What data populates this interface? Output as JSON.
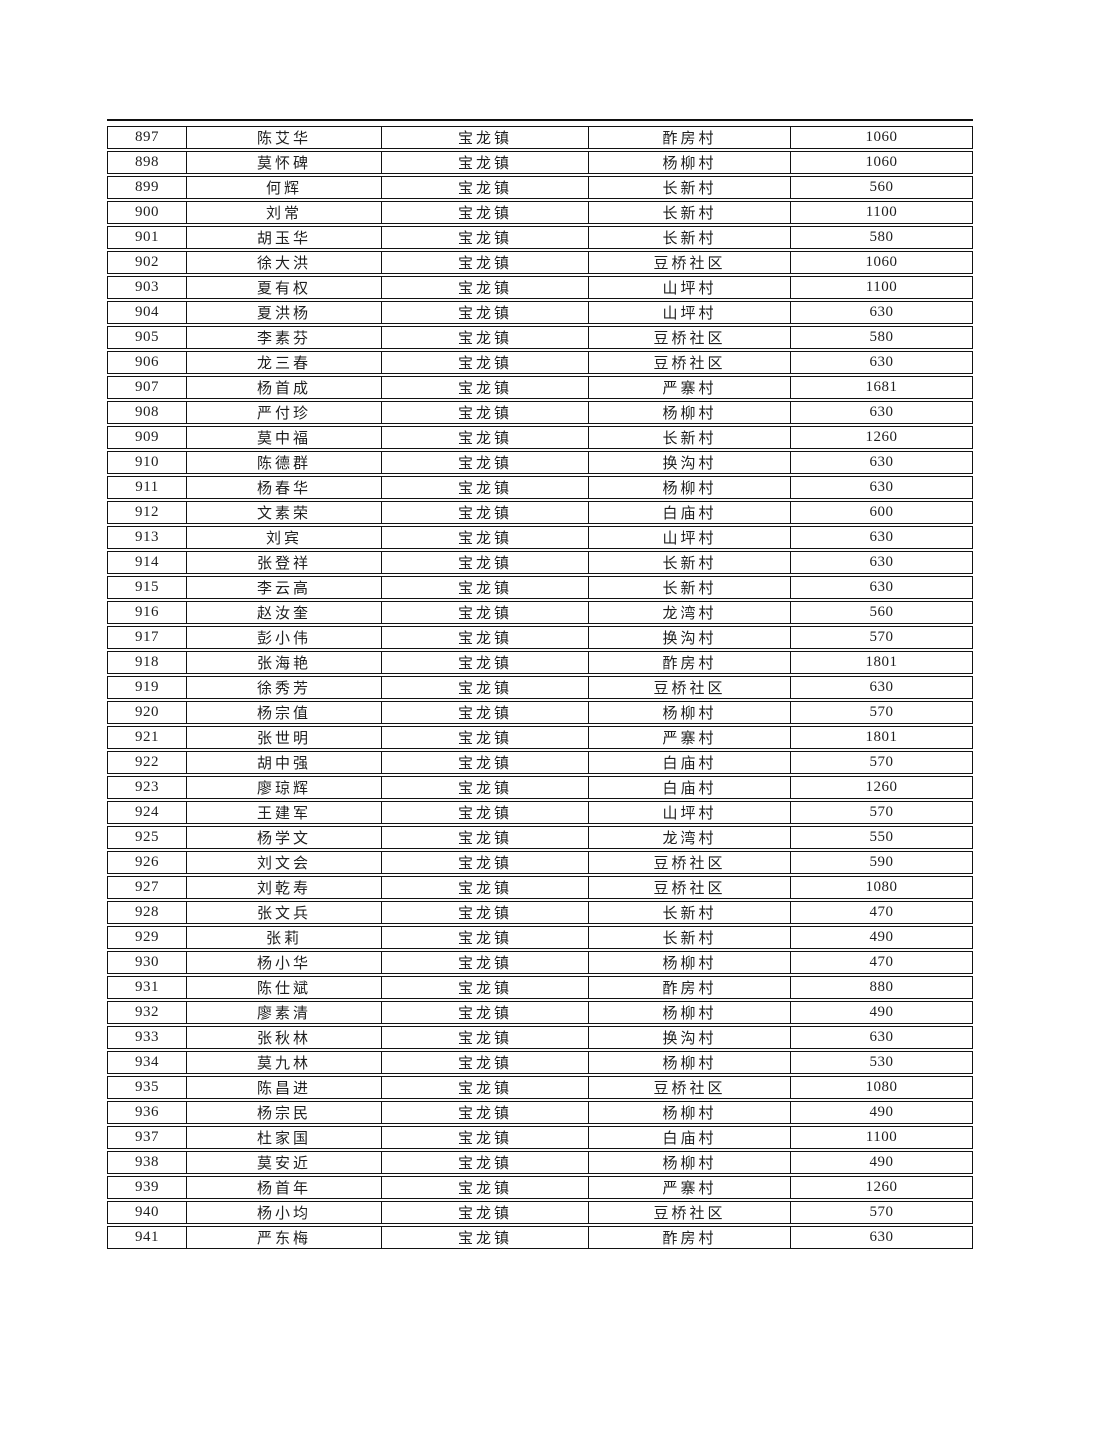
{
  "table": {
    "column_keys": [
      "no",
      "name",
      "town",
      "village",
      "amount"
    ],
    "town_value_common": "宝龙镇",
    "rows": [
      {
        "no": "897",
        "name": "陈艾华",
        "town": "宝龙镇",
        "village": "酢房村",
        "amount": "1060"
      },
      {
        "no": "898",
        "name": "莫怀碑",
        "town": "宝龙镇",
        "village": "杨柳村",
        "amount": "1060"
      },
      {
        "no": "899",
        "name": "何辉",
        "town": "宝龙镇",
        "village": "长新村",
        "amount": "560"
      },
      {
        "no": "900",
        "name": "刘常",
        "town": "宝龙镇",
        "village": "长新村",
        "amount": "1100"
      },
      {
        "no": "901",
        "name": "胡玉华",
        "town": "宝龙镇",
        "village": "长新村",
        "amount": "580"
      },
      {
        "no": "902",
        "name": "徐大洪",
        "town": "宝龙镇",
        "village": "豆桥社区",
        "amount": "1060"
      },
      {
        "no": "903",
        "name": "夏有权",
        "town": "宝龙镇",
        "village": "山坪村",
        "amount": "1100"
      },
      {
        "no": "904",
        "name": "夏洪杨",
        "town": "宝龙镇",
        "village": "山坪村",
        "amount": "630"
      },
      {
        "no": "905",
        "name": "李素芬",
        "town": "宝龙镇",
        "village": "豆桥社区",
        "amount": "580"
      },
      {
        "no": "906",
        "name": "龙三春",
        "town": "宝龙镇",
        "village": "豆桥社区",
        "amount": "630"
      },
      {
        "no": "907",
        "name": "杨首成",
        "town": "宝龙镇",
        "village": "严寨村",
        "amount": "1681"
      },
      {
        "no": "908",
        "name": "严付珍",
        "town": "宝龙镇",
        "village": "杨柳村",
        "amount": "630"
      },
      {
        "no": "909",
        "name": "莫中福",
        "town": "宝龙镇",
        "village": "长新村",
        "amount": "1260"
      },
      {
        "no": "910",
        "name": "陈德群",
        "town": "宝龙镇",
        "village": "换沟村",
        "amount": "630"
      },
      {
        "no": "911",
        "name": "杨春华",
        "town": "宝龙镇",
        "village": "杨柳村",
        "amount": "630"
      },
      {
        "no": "912",
        "name": "文素荣",
        "town": "宝龙镇",
        "village": "白庙村",
        "amount": "600"
      },
      {
        "no": "913",
        "name": "刘宾",
        "town": "宝龙镇",
        "village": "山坪村",
        "amount": "630"
      },
      {
        "no": "914",
        "name": "张登祥",
        "town": "宝龙镇",
        "village": "长新村",
        "amount": "630"
      },
      {
        "no": "915",
        "name": "李云高",
        "town": "宝龙镇",
        "village": "长新村",
        "amount": "630"
      },
      {
        "no": "916",
        "name": "赵汝奎",
        "town": "宝龙镇",
        "village": "龙湾村",
        "amount": "560"
      },
      {
        "no": "917",
        "name": "彭小伟",
        "town": "宝龙镇",
        "village": "换沟村",
        "amount": "570"
      },
      {
        "no": "918",
        "name": "张海艳",
        "town": "宝龙镇",
        "village": "酢房村",
        "amount": "1801"
      },
      {
        "no": "919",
        "name": "徐秀芳",
        "town": "宝龙镇",
        "village": "豆桥社区",
        "amount": "630"
      },
      {
        "no": "920",
        "name": "杨宗值",
        "town": "宝龙镇",
        "village": "杨柳村",
        "amount": "570"
      },
      {
        "no": "921",
        "name": "张世明",
        "town": "宝龙镇",
        "village": "严寨村",
        "amount": "1801"
      },
      {
        "no": "922",
        "name": "胡中强",
        "town": "宝龙镇",
        "village": "白庙村",
        "amount": "570"
      },
      {
        "no": "923",
        "name": "廖琼辉",
        "town": "宝龙镇",
        "village": "白庙村",
        "amount": "1260"
      },
      {
        "no": "924",
        "name": "王建军",
        "town": "宝龙镇",
        "village": "山坪村",
        "amount": "570"
      },
      {
        "no": "925",
        "name": "杨学文",
        "town": "宝龙镇",
        "village": "龙湾村",
        "amount": "550"
      },
      {
        "no": "926",
        "name": "刘文会",
        "town": "宝龙镇",
        "village": "豆桥社区",
        "amount": "590"
      },
      {
        "no": "927",
        "name": "刘乾寿",
        "town": "宝龙镇",
        "village": "豆桥社区",
        "amount": "1080"
      },
      {
        "no": "928",
        "name": "张文兵",
        "town": "宝龙镇",
        "village": "长新村",
        "amount": "470"
      },
      {
        "no": "929",
        "name": "张莉",
        "town": "宝龙镇",
        "village": "长新村",
        "amount": "490"
      },
      {
        "no": "930",
        "name": "杨小华",
        "town": "宝龙镇",
        "village": "杨柳村",
        "amount": "470"
      },
      {
        "no": "931",
        "name": "陈仕斌",
        "town": "宝龙镇",
        "village": "酢房村",
        "amount": "880"
      },
      {
        "no": "932",
        "name": "廖素清",
        "town": "宝龙镇",
        "village": "杨柳村",
        "amount": "490"
      },
      {
        "no": "933",
        "name": "张秋林",
        "town": "宝龙镇",
        "village": "换沟村",
        "amount": "630"
      },
      {
        "no": "934",
        "name": "莫九林",
        "town": "宝龙镇",
        "village": "杨柳村",
        "amount": "530"
      },
      {
        "no": "935",
        "name": "陈昌进",
        "town": "宝龙镇",
        "village": "豆桥社区",
        "amount": "1080"
      },
      {
        "no": "936",
        "name": "杨宗民",
        "town": "宝龙镇",
        "village": "杨柳村",
        "amount": "490"
      },
      {
        "no": "937",
        "name": "杜家国",
        "town": "宝龙镇",
        "village": "白庙村",
        "amount": "1100"
      },
      {
        "no": "938",
        "name": "莫安近",
        "town": "宝龙镇",
        "village": "杨柳村",
        "amount": "490"
      },
      {
        "no": "939",
        "name": "杨首年",
        "town": "宝龙镇",
        "village": "严寨村",
        "amount": "1260"
      },
      {
        "no": "940",
        "name": "杨小均",
        "town": "宝龙镇",
        "village": "豆桥社区",
        "amount": "570"
      },
      {
        "no": "941",
        "name": "严东梅",
        "town": "宝龙镇",
        "village": "酢房村",
        "amount": "630"
      }
    ],
    "colors": {
      "border": "#121212",
      "text": "#1e1e1e",
      "background": "#ffffff"
    }
  }
}
